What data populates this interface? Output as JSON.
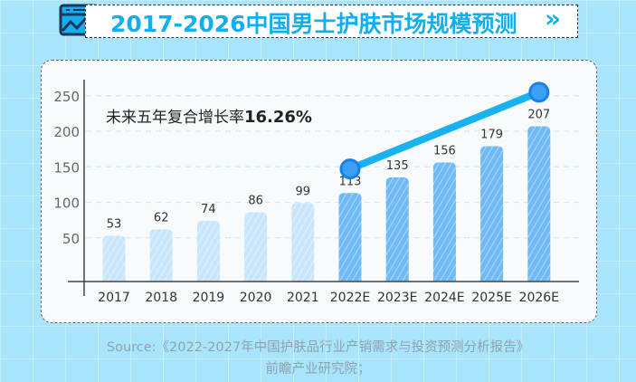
{
  "title": "2017-2026中国男士护肤市场规模预测",
  "title_icon": "chart-window-icon",
  "title_arrow": "double-chevron-right-icon",
  "colors": {
    "accent": "#12aef0",
    "historic_bar": "#c8e5fc",
    "forecast_bar": "#6fbaf6",
    "trend_line": "#19b2f0",
    "trend_dot": "#3ba0f6"
  },
  "chart_data": {
    "type": "bar",
    "categories": [
      "2017",
      "2018",
      "2019",
      "2020",
      "2021",
      "2022E",
      "2023E",
      "2024E",
      "2025E",
      "2026E"
    ],
    "values": [
      53,
      62,
      74,
      86,
      99,
      113,
      135,
      156,
      179,
      207
    ],
    "forecast_from": "2022E",
    "yticks": [
      50,
      100,
      150,
      200,
      250
    ],
    "ylim": [
      0,
      250
    ],
    "grid": true,
    "annotation": "未来五年复合增长率",
    "annotation_value": "16.26%",
    "trend_line": {
      "from": {
        "x": "2022E",
        "y": 147
      },
      "to": {
        "x": "2026E",
        "y": 255
      }
    }
  },
  "source": {
    "line1": "Source:《2022-2027年中国护肤品行业产销需求与投资预测分析报告》",
    "line2": "前瞻产业研究院；"
  }
}
